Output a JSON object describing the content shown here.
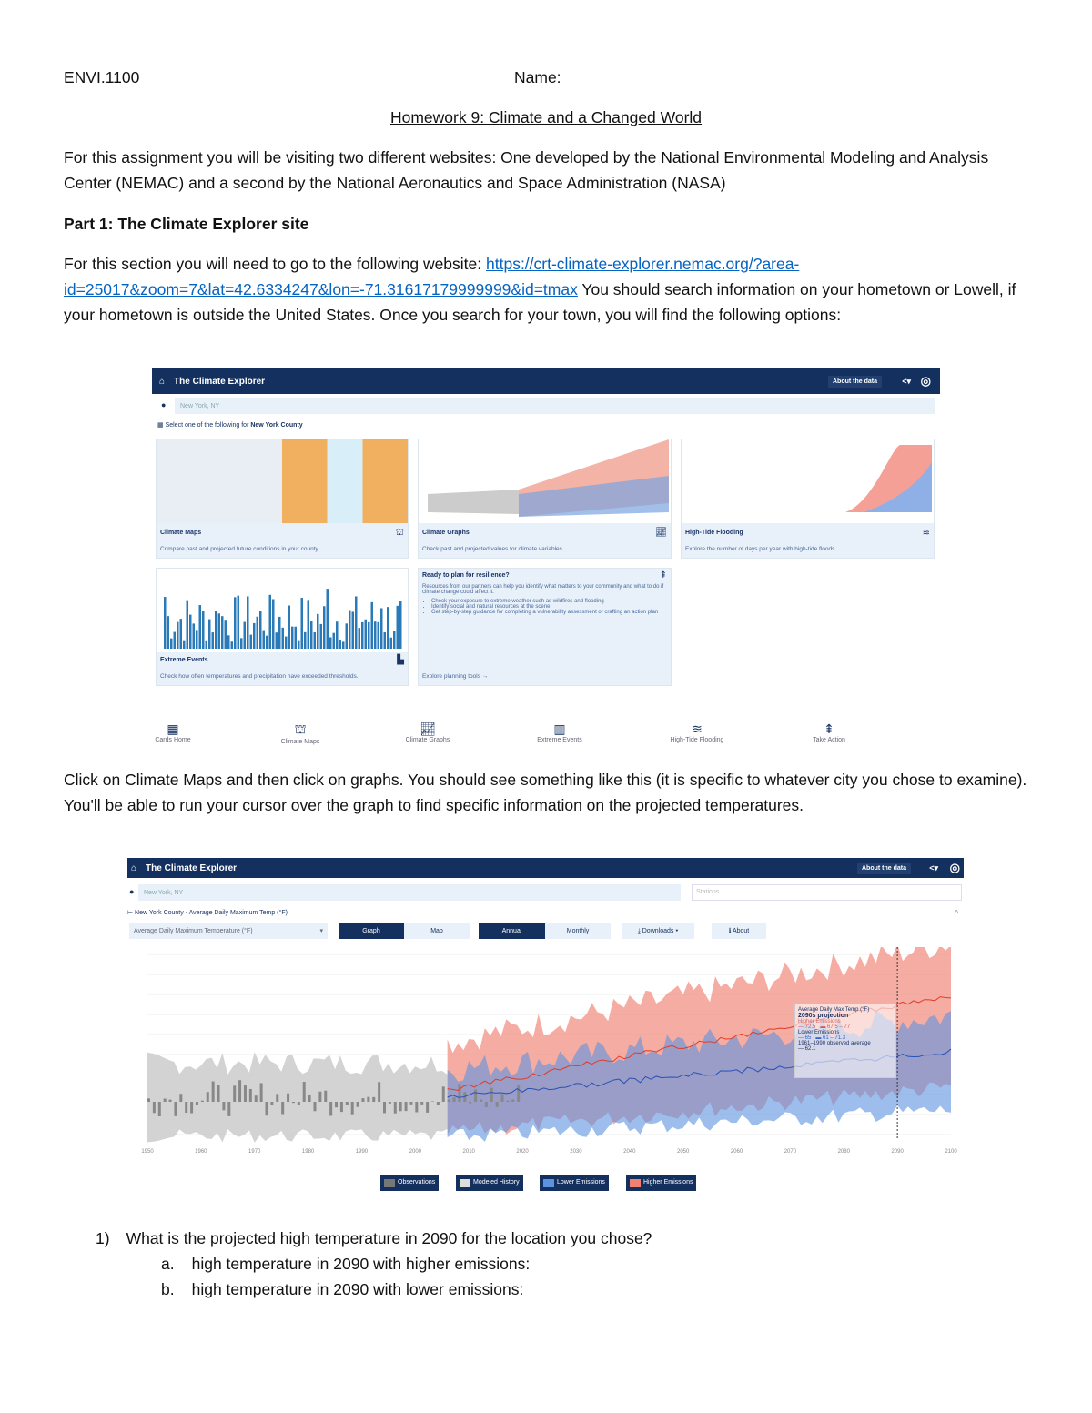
{
  "header": {
    "course": "ENVI.1100",
    "name_label": "Name:"
  },
  "title": "Homework 9: Climate and a Changed World",
  "intro": "For this assignment you will be visiting two different websites: One developed by the National Environmental Modeling and Analysis Center (NEMAC) and a second by the National Aeronautics and Space Administration (NASA)",
  "part1_heading": "Part 1: The Climate Explorer site",
  "part1_text_before": "For this section you will need to go to the following website: ",
  "part1_link": "https://crt-climate-explorer.nemac.org/?area-id=25017&zoom=7&lat=42.6334247&lon=-71.31617179999999&id=tmax",
  "part1_text_after": " You should search information on your hometown or Lowell, if your hometown is outside the United States. Once you search for your town, you will find the following options:",
  "screenshot1": {
    "app_title": "The Climate Explorer",
    "about_label": "About the data",
    "search_value": "New York, NY",
    "select_prompt": "Select one of the following for",
    "county": "New York County",
    "cards": [
      {
        "title": "Climate Maps",
        "desc": "Compare past and projected future conditions in your county.",
        "icon": "map-icon"
      },
      {
        "title": "Climate Graphs",
        "desc": "Check past and projected values for climate variables",
        "icon": "line-chart-icon"
      },
      {
        "title": "High-Tide Flooding",
        "desc": "Explore the number of days per year with high-tide floods.",
        "icon": "waves-icon"
      },
      {
        "title": "Extreme Events",
        "desc": "Check how often temperatures and precipitation have exceeded thresholds.",
        "icon": "bar-chart-icon"
      }
    ],
    "plan_card": {
      "title": "Ready to plan for resilience?",
      "desc": "Resources from our partners can help you identify what matters to your community and what to do if climate change could affect it.",
      "bullets": [
        "Check your exposure to extreme weather such as wildfires and flooding",
        "Identify social and natural resources at the scene",
        "Get step-by-step guidance for completing a vulnerability assessment or crafting an action plan"
      ],
      "link": "Explore planning tools"
    },
    "nav": [
      "Cards Home",
      "Climate Maps",
      "Climate Graphs",
      "Extreme Events",
      "High-Tide Flooding",
      "Take Action"
    ]
  },
  "para2": "Click on Climate Maps and then click on graphs. You should see something like this (it is specific to whatever city you chose to examine). You'll be able to run your cursor over the graph to find specific information on the projected temperatures.",
  "screenshot2": {
    "app_title": "The Climate Explorer",
    "about_label": "About the data",
    "search_value": "New York, NY",
    "stations_placeholder": "Stations",
    "breadcrumb": "New York County - Average Daily Maximum Temp (°F)",
    "variable_select": "Average Daily Maximum Temperature (°F)",
    "graph_label": "Graph",
    "map_label": "Map",
    "annual_label": "Annual",
    "monthly_label": "Monthly",
    "downloads_label": "Downloads",
    "about_btn": "About",
    "x_ticks": [
      "1950",
      "1960",
      "1970",
      "1980",
      "1990",
      "2000",
      "2010",
      "2020",
      "2030",
      "2040",
      "2050",
      "2060",
      "2070",
      "2080",
      "2090",
      "2100"
    ],
    "tooltip": {
      "title": "Average Daily Max Temp (°F)",
      "period": "2090s projection",
      "higher": "Higher Emissions",
      "higher_val": "72.5",
      "higher_range": "67.5 – 77",
      "lower": "Lower Emissions",
      "lower_val": "65",
      "lower_range": "61 – 71.3",
      "observed": "1961–1990 observed average",
      "observed_val": "62.1"
    },
    "legend": [
      "Observations",
      "Modeled History",
      "Lower Emissions",
      "Higher Emissions"
    ],
    "colors": {
      "navy": "#14305f",
      "higher": "#f08070",
      "lower": "#5b93e0",
      "history": "#c8c8c8"
    }
  },
  "questions": [
    {
      "num": "1)",
      "text": "What is the projected high temperature in 2090 for the location you chose?",
      "sub": [
        {
          "letter": "a.",
          "text": "high temperature in 2090 with higher emissions:"
        },
        {
          "letter": "b.",
          "text": "high temperature in 2090 with lower emissions:"
        }
      ]
    }
  ]
}
